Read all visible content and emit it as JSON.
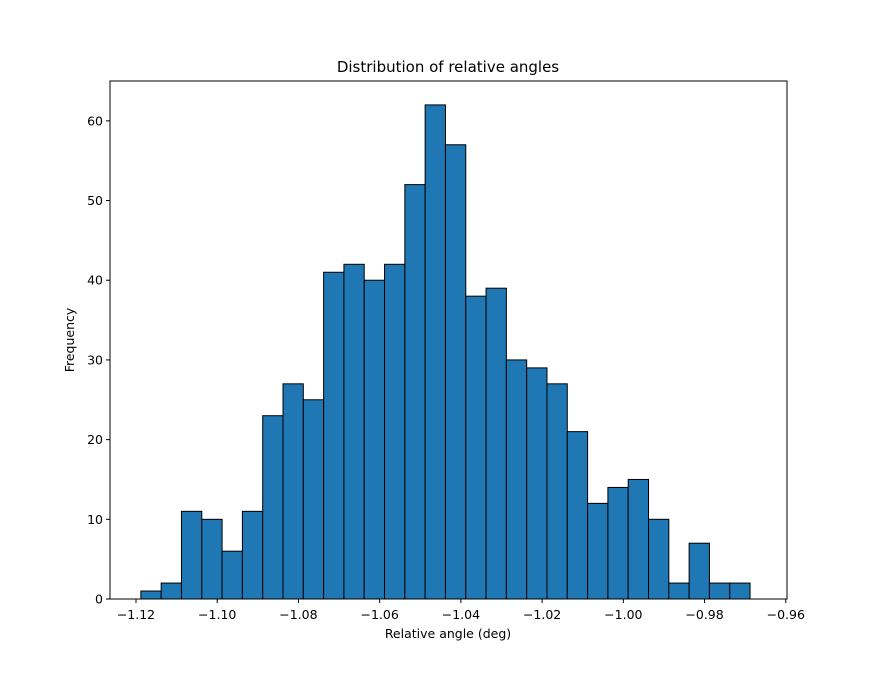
{
  "chart_data": {
    "type": "bar",
    "title": "Distribution of relative angles",
    "xlabel": "Relative angle (deg)",
    "ylabel": "Frequency",
    "xlim": [
      -1.1264,
      -0.9597
    ],
    "ylim": [
      0,
      65
    ],
    "xticks": [
      -1.12,
      -1.1,
      -1.08,
      -1.06,
      -1.04,
      -1.02,
      -1.0,
      -0.98,
      -0.96
    ],
    "xtick_labels": [
      "−1.12",
      "−1.10",
      "−1.08",
      "−1.06",
      "−1.04",
      "−1.02",
      "−1.00",
      "−0.98",
      "−0.96"
    ],
    "yticks": [
      0,
      10,
      20,
      30,
      40,
      50,
      60
    ],
    "ytick_labels": [
      "0",
      "10",
      "20",
      "30",
      "40",
      "50",
      "60"
    ],
    "bin_start": -1.1188,
    "bin_width": 0.005,
    "values": [
      1,
      2,
      11,
      10,
      6,
      11,
      23,
      27,
      25,
      41,
      42,
      40,
      42,
      52,
      62,
      57,
      38,
      39,
      30,
      29,
      27,
      21,
      12,
      14,
      15,
      10,
      2,
      7,
      2,
      2
    ],
    "grid": false,
    "bar_color": "#1f77b4",
    "edge_color": "#000000"
  }
}
